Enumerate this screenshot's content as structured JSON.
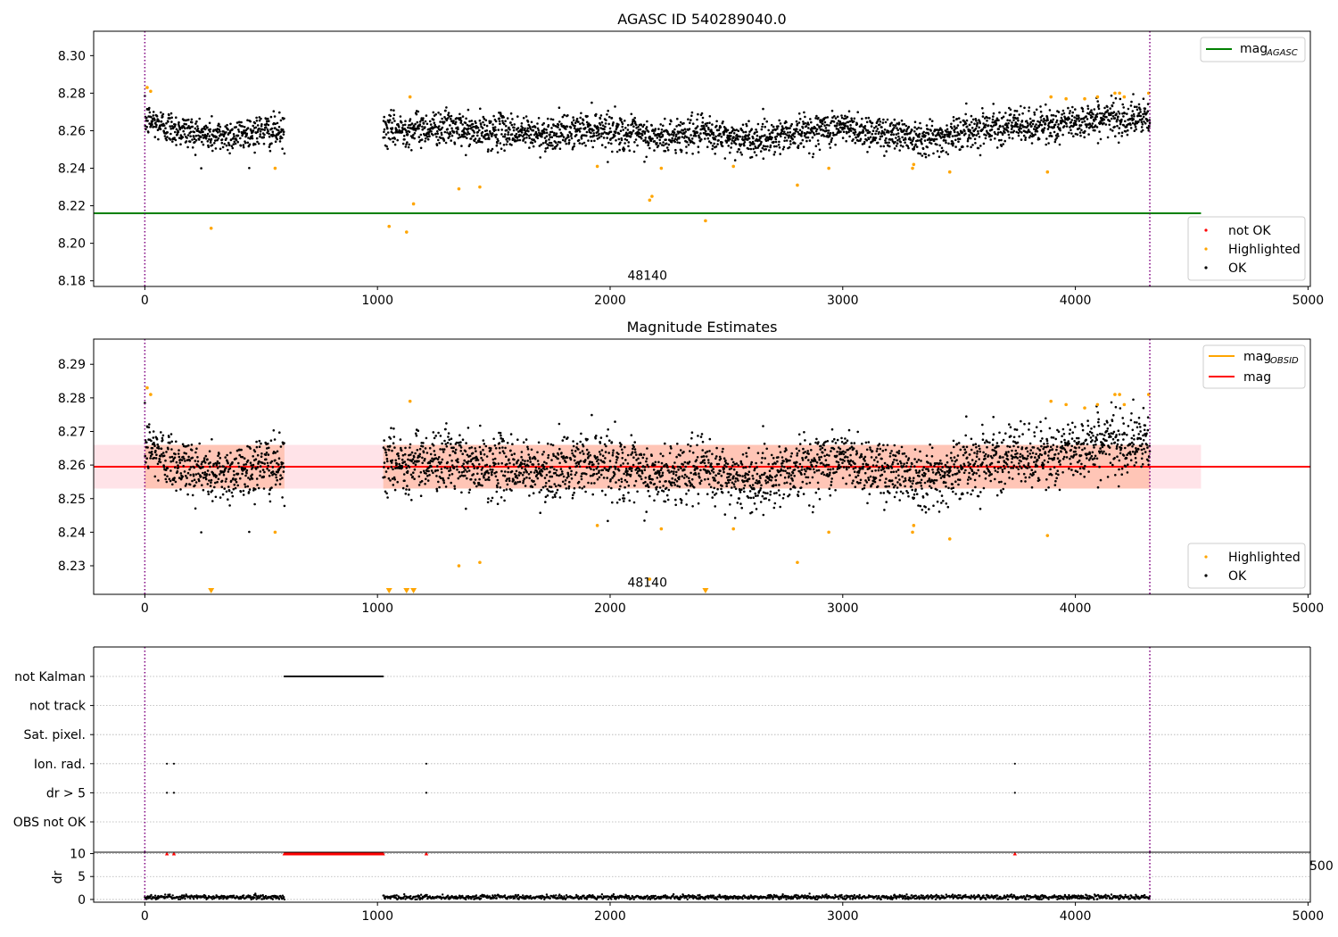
{
  "chart_data": [
    {
      "type": "scatter",
      "title": "AGASC ID 540289040.0",
      "xlabel": "",
      "ylabel": "",
      "xlim": [
        -220,
        5010
      ],
      "ylim": [
        8.177,
        8.313
      ],
      "xticks": [
        0,
        1000,
        2000,
        3000,
        4000,
        5000
      ],
      "yticks": [
        8.18,
        8.2,
        8.22,
        8.24,
        8.26,
        8.28,
        8.3
      ],
      "ytick_decimals": 2,
      "vlines_x": [
        0,
        4320
      ],
      "vline_color": "#800080",
      "annotation": {
        "text": "48140",
        "x": 2160,
        "y": 8.182
      },
      "hline": {
        "name": "mag_AGASC",
        "y": 8.216,
        "x_range": [
          -220,
          4540
        ],
        "color": "#008000"
      },
      "line_legend": {
        "position": "top-right",
        "entries": [
          {
            "label": "mag",
            "sub": "AGASC",
            "color": "#008000"
          }
        ]
      },
      "point_legend": {
        "position": "bottom-right",
        "entries": [
          {
            "label": "not OK",
            "color": "#ff0000"
          },
          {
            "label": "Highlighted",
            "color": "#ffa500"
          },
          {
            "label": "OK",
            "color": "#000000"
          }
        ]
      },
      "ok_series": {
        "name": "OK",
        "color": "#000000",
        "segments": [
          {
            "x_start": 0,
            "x_end": 600,
            "levels": [
              8.266,
              8.262,
              8.259,
              8.257,
              8.258,
              8.26,
              8.259
            ]
          },
          {
            "x_start": 1025,
            "x_end": 4320,
            "levels": [
              8.26,
              8.261,
              8.262,
              8.259,
              8.26,
              8.258,
              8.259,
              8.262,
              8.258,
              8.256,
              8.259,
              8.257,
              8.255,
              8.258,
              8.26,
              8.262,
              8.259,
              8.258,
              8.256,
              8.26,
              8.263,
              8.262,
              8.263,
              8.266,
              8.267,
              8.266
            ]
          }
        ],
        "noise_sd": 0.0045
      },
      "highlighted": {
        "name": "Highlighted",
        "color": "#ffa500",
        "points": [
          [
            10,
            8.283
          ],
          [
            25,
            8.281
          ],
          [
            285,
            8.208
          ],
          [
            560,
            8.24
          ],
          [
            1050,
            8.209
          ],
          [
            1125,
            8.206
          ],
          [
            1140,
            8.278
          ],
          [
            1155,
            8.221
          ],
          [
            1350,
            8.229
          ],
          [
            1440,
            8.23
          ],
          [
            1945,
            8.241
          ],
          [
            2170,
            8.223
          ],
          [
            2180,
            8.225
          ],
          [
            2220,
            8.24
          ],
          [
            2410,
            8.212
          ],
          [
            2530,
            8.241
          ],
          [
            2805,
            8.231
          ],
          [
            2940,
            8.24
          ],
          [
            3300,
            8.24
          ],
          [
            3305,
            8.242
          ],
          [
            3460,
            8.238
          ],
          [
            3880,
            8.238
          ],
          [
            3895,
            8.278
          ],
          [
            3960,
            8.277
          ],
          [
            4040,
            8.277
          ],
          [
            4095,
            8.278
          ],
          [
            4170,
            8.28
          ],
          [
            4190,
            8.28
          ],
          [
            4210,
            8.278
          ],
          [
            4315,
            8.28
          ]
        ]
      }
    },
    {
      "type": "scatter",
      "title": "Magnitude Estimates",
      "xlabel": "",
      "ylabel": "",
      "xlim": [
        -220,
        5010
      ],
      "ylim": [
        8.2215,
        8.2975
      ],
      "xticks": [
        0,
        1000,
        2000,
        3000,
        4000,
        5000
      ],
      "yticks": [
        8.23,
        8.24,
        8.25,
        8.26,
        8.27,
        8.28,
        8.29
      ],
      "ytick_decimals": 2,
      "vlines_x": [
        0,
        4320
      ],
      "vline_color": "#800080",
      "annotation": {
        "text": "48140",
        "x": 2160,
        "y": 8.2245
      },
      "mag_line": {
        "name": "mag",
        "y": 8.2595,
        "color": "#ff0000"
      },
      "band_full": {
        "y_range": [
          8.253,
          8.266
        ],
        "x_range": [
          -220,
          4540
        ],
        "color": "#ffc0cb"
      },
      "band_obs": [
        {
          "x_range": [
            0,
            600
          ],
          "y_range": [
            8.253,
            8.266
          ],
          "color": "#ffa07a"
        },
        {
          "x_range": [
            1025,
            4320
          ],
          "y_range": [
            8.253,
            8.266
          ],
          "color": "#ffa07a"
        }
      ],
      "line_legend": {
        "position": "top-right",
        "entries": [
          {
            "label": "mag",
            "sub": "OBSID",
            "color": "#ffa500"
          },
          {
            "label": "mag",
            "sub": "",
            "color": "#ff0000"
          }
        ]
      },
      "point_legend": {
        "position": "bottom-right",
        "entries": [
          {
            "label": "Highlighted",
            "color": "#ffa500"
          },
          {
            "label": "OK",
            "color": "#000000"
          }
        ]
      },
      "ok_series": {
        "name": "OK",
        "color": "#000000",
        "segments": [
          {
            "x_start": 0,
            "x_end": 600,
            "levels": [
              8.266,
              8.262,
              8.259,
              8.257,
              8.258,
              8.26,
              8.259
            ]
          },
          {
            "x_start": 1025,
            "x_end": 4320,
            "levels": [
              8.26,
              8.261,
              8.262,
              8.259,
              8.26,
              8.258,
              8.259,
              8.262,
              8.258,
              8.256,
              8.259,
              8.257,
              8.255,
              8.258,
              8.26,
              8.262,
              8.259,
              8.258,
              8.256,
              8.26,
              8.263,
              8.262,
              8.263,
              8.266,
              8.267,
              8.266
            ]
          }
        ],
        "noise_sd": 0.0045
      },
      "highlighted": {
        "name": "Highlighted",
        "color": "#ffa500",
        "points": [
          [
            10,
            8.283
          ],
          [
            25,
            8.281
          ],
          [
            560,
            8.24
          ],
          [
            1140,
            8.279
          ],
          [
            1350,
            8.23
          ],
          [
            1440,
            8.231
          ],
          [
            1945,
            8.242
          ],
          [
            2170,
            8.226
          ],
          [
            2220,
            8.241
          ],
          [
            2530,
            8.241
          ],
          [
            2805,
            8.231
          ],
          [
            2940,
            8.24
          ],
          [
            3300,
            8.24
          ],
          [
            3305,
            8.242
          ],
          [
            3460,
            8.238
          ],
          [
            3880,
            8.239
          ],
          [
            3895,
            8.279
          ],
          [
            3960,
            8.278
          ],
          [
            4040,
            8.277
          ],
          [
            4095,
            8.278
          ],
          [
            4170,
            8.281
          ],
          [
            4190,
            8.281
          ],
          [
            4210,
            8.278
          ],
          [
            4315,
            8.281
          ]
        ]
      },
      "lower_limit_markers": {
        "color": "#ffa500",
        "x": [
          285,
          1050,
          1125,
          1155,
          2410
        ]
      }
    },
    {
      "type": "scatter",
      "title": "",
      "xlabel": "",
      "ylabel": "",
      "xlim": [
        -220,
        5010
      ],
      "flag_rows": [
        "not Kalman",
        "not track",
        "Sat. pixel.",
        "Ion. rad.",
        "dr > 5",
        "OBS not OK"
      ],
      "flags": {
        "not Kalman": {
          "ranges": [
            [
              600,
              1025
            ]
          ],
          "points": []
        },
        "not track": {
          "ranges": [],
          "points": []
        },
        "Sat. pixel.": {
          "ranges": [],
          "points": []
        },
        "Ion. rad.": {
          "ranges": [],
          "points": [
            95,
            125,
            1210,
            3740
          ]
        },
        "dr > 5": {
          "ranges": [],
          "points": [
            95,
            125,
            1210,
            3740
          ]
        },
        "OBS not OK": {
          "ranges": [],
          "points": []
        }
      },
      "vlines_x": [
        0,
        4320
      ],
      "vline_color": "#800080"
    },
    {
      "type": "scatter",
      "title": "",
      "xlabel": "",
      "ylabel": "dr",
      "xlim": [
        -220,
        5010
      ],
      "ylim": [
        -0.6,
        10.3
      ],
      "xticks": [
        0,
        1000,
        2000,
        3000,
        4000,
        5000
      ],
      "yticks": [
        0,
        5,
        10
      ],
      "ytick_decimals": 0,
      "hidden_tick_label": "500",
      "vlines_x": [
        0,
        4320
      ],
      "vline_color": "#800080",
      "dr_series": {
        "name": "dr",
        "color": "#000000",
        "segments": [
          {
            "x_start": 0,
            "x_end": 600
          },
          {
            "x_start": 1025,
            "x_end": 4320
          }
        ],
        "base": 0.5,
        "noise_sd": 0.25
      },
      "clipped_markers": {
        "color": "#ff0000",
        "y": 10,
        "ranges": [
          [
            600,
            1025
          ]
        ],
        "points": [
          95,
          125,
          1210,
          3740
        ]
      }
    }
  ]
}
